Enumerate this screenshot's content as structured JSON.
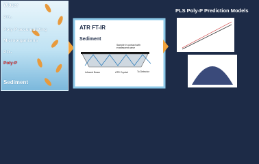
{
  "left_panel": {
    "labels": [
      "Water",
      "PO₄",
      "Poly-P accumulating",
      "Microorganisms",
      "PO₄",
      "Poly-P",
      "Sediment"
    ]
  },
  "middle_panel": {
    "title": "ATR FT-IR",
    "subtitle": "Sediment",
    "diagram_labels": [
      "Sample in contact with evanescent wave",
      "To Detector",
      "Infrared Beam",
      "ATR Crystal"
    ]
  },
  "right_panel": {
    "title": "PLS Poly-P Prediction Models"
  }
}
